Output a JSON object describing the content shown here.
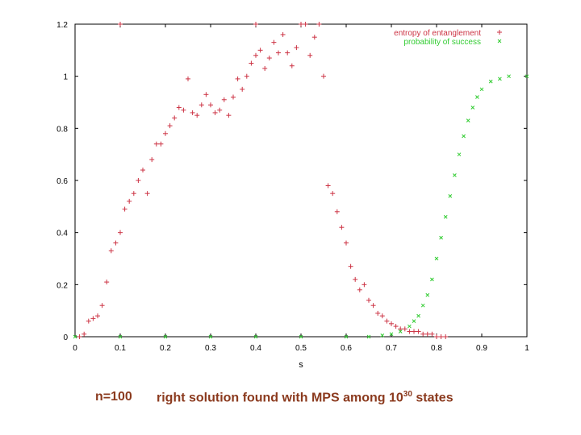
{
  "chart_data": {
    "type": "scatter",
    "xlabel": "s",
    "ylabel": "",
    "xlim": [
      0,
      1
    ],
    "ylim": [
      0,
      1.2
    ],
    "x_ticks": [
      "0",
      "0.1",
      "0.2",
      "0.3",
      "0.4",
      "0.5",
      "0.6",
      "0.7",
      "0.8",
      "0.9",
      "1"
    ],
    "y_ticks": [
      "0",
      "0.2",
      "0.4",
      "0.6",
      "0.8",
      "1",
      "1.2"
    ],
    "legend_position": "top-right",
    "series": [
      {
        "name": "entropy of entanglement",
        "color": "#cc3344",
        "marker": "plus",
        "points": [
          [
            0.01,
            0.0
          ],
          [
            0.02,
            0.01
          ],
          [
            0.03,
            0.06
          ],
          [
            0.04,
            0.07
          ],
          [
            0.05,
            0.08
          ],
          [
            0.06,
            0.12
          ],
          [
            0.07,
            0.21
          ],
          [
            0.08,
            0.33
          ],
          [
            0.09,
            0.36
          ],
          [
            0.1,
            0.4
          ],
          [
            0.11,
            0.49
          ],
          [
            0.12,
            0.52
          ],
          [
            0.13,
            0.55
          ],
          [
            0.14,
            0.6
          ],
          [
            0.15,
            0.64
          ],
          [
            0.16,
            0.55
          ],
          [
            0.17,
            0.68
          ],
          [
            0.18,
            0.74
          ],
          [
            0.19,
            0.74
          ],
          [
            0.2,
            0.78
          ],
          [
            0.21,
            0.81
          ],
          [
            0.22,
            0.84
          ],
          [
            0.23,
            0.88
          ],
          [
            0.24,
            0.87
          ],
          [
            0.25,
            0.99
          ],
          [
            0.26,
            0.86
          ],
          [
            0.27,
            0.85
          ],
          [
            0.28,
            0.89
          ],
          [
            0.29,
            0.93
          ],
          [
            0.3,
            0.89
          ],
          [
            0.31,
            0.86
          ],
          [
            0.32,
            0.87
          ],
          [
            0.33,
            0.91
          ],
          [
            0.34,
            0.85
          ],
          [
            0.35,
            0.92
          ],
          [
            0.36,
            0.99
          ],
          [
            0.37,
            0.95
          ],
          [
            0.38,
            1.0
          ],
          [
            0.39,
            1.05
          ],
          [
            0.4,
            1.08
          ],
          [
            0.41,
            1.1
          ],
          [
            0.42,
            1.03
          ],
          [
            0.43,
            1.07
          ],
          [
            0.44,
            1.13
          ],
          [
            0.45,
            1.09
          ],
          [
            0.46,
            1.16
          ],
          [
            0.47,
            1.09
          ],
          [
            0.48,
            1.04
          ],
          [
            0.49,
            1.11
          ],
          [
            0.5,
            1.2
          ],
          [
            0.51,
            1.2
          ],
          [
            0.52,
            1.08
          ],
          [
            0.53,
            1.15
          ],
          [
            0.54,
            1.2
          ],
          [
            0.55,
            1.0
          ],
          [
            0.56,
            0.58
          ],
          [
            0.57,
            0.55
          ],
          [
            0.58,
            0.48
          ],
          [
            0.59,
            0.42
          ],
          [
            0.6,
            0.36
          ],
          [
            0.61,
            0.27
          ],
          [
            0.62,
            0.22
          ],
          [
            0.63,
            0.18
          ],
          [
            0.64,
            0.2
          ],
          [
            0.65,
            0.14
          ],
          [
            0.66,
            0.12
          ],
          [
            0.67,
            0.09
          ],
          [
            0.68,
            0.08
          ],
          [
            0.69,
            0.06
          ],
          [
            0.7,
            0.05
          ],
          [
            0.71,
            0.04
          ],
          [
            0.72,
            0.03
          ],
          [
            0.73,
            0.03
          ],
          [
            0.74,
            0.02
          ],
          [
            0.75,
            0.02
          ],
          [
            0.76,
            0.02
          ],
          [
            0.77,
            0.01
          ],
          [
            0.78,
            0.01
          ],
          [
            0.79,
            0.01
          ],
          [
            0.8,
            0.0
          ],
          [
            0.81,
            0.0
          ],
          [
            0.82,
            0.0
          ],
          [
            0.1,
            1.2
          ],
          [
            0.4,
            1.2
          ]
        ]
      },
      {
        "name": "probability of success",
        "color": "#33cc33",
        "marker": "cross",
        "points": [
          [
            0.0,
            0.0
          ],
          [
            0.1,
            0.0
          ],
          [
            0.2,
            0.0
          ],
          [
            0.3,
            0.0
          ],
          [
            0.4,
            0.0
          ],
          [
            0.5,
            0.0
          ],
          [
            0.6,
            0.0
          ],
          [
            0.65,
            0.0
          ],
          [
            0.68,
            0.005
          ],
          [
            0.7,
            0.01
          ],
          [
            0.72,
            0.02
          ],
          [
            0.74,
            0.04
          ],
          [
            0.75,
            0.06
          ],
          [
            0.76,
            0.08
          ],
          [
            0.77,
            0.12
          ],
          [
            0.78,
            0.16
          ],
          [
            0.79,
            0.22
          ],
          [
            0.8,
            0.3
          ],
          [
            0.81,
            0.38
          ],
          [
            0.82,
            0.46
          ],
          [
            0.83,
            0.54
          ],
          [
            0.84,
            0.62
          ],
          [
            0.85,
            0.7
          ],
          [
            0.86,
            0.77
          ],
          [
            0.87,
            0.83
          ],
          [
            0.88,
            0.88
          ],
          [
            0.89,
            0.92
          ],
          [
            0.9,
            0.95
          ],
          [
            0.92,
            0.98
          ],
          [
            0.94,
            0.99
          ],
          [
            0.96,
            1.0
          ],
          [
            1.0,
            1.0
          ]
        ]
      }
    ]
  },
  "caption": {
    "left": "n=100",
    "right_prefix": "right solution found with MPS among 10",
    "right_exponent": "30",
    "right_suffix": " states"
  }
}
